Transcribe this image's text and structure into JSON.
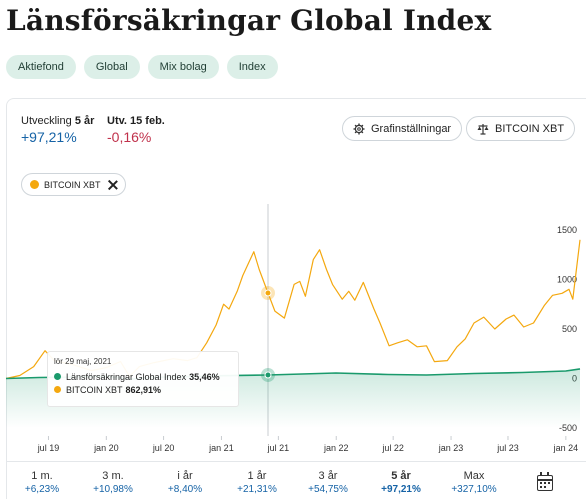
{
  "page": {
    "title": "Länsförsäkringar Global Index",
    "tags": [
      "Aktiefond",
      "Global",
      "Mix bolag",
      "Index"
    ]
  },
  "stats": {
    "development_label": "Utveckling",
    "development_period": "5 år",
    "development_value": "+97,21%",
    "daily_label": "Utv. 15 feb.",
    "daily_value": "-0,16%"
  },
  "buttons": {
    "chart_settings": "Grafinställningar",
    "compare": "BITCOIN XBT"
  },
  "chip": {
    "label": "BITCOIN XBT"
  },
  "tooltip": {
    "date": "lör 29 maj, 2021",
    "rows": [
      {
        "name": "Länsförsäkringar Global Index",
        "value": "35,46%",
        "color": "#1a9a6c"
      },
      {
        "name": "BITCOIN XBT",
        "value": "862,91%",
        "color": "#f4a80f"
      }
    ]
  },
  "colors": {
    "fund": "#1a9a6c",
    "bitcoin": "#f4a80f",
    "positive": "#1663a6",
    "negative": "#c0314b"
  },
  "periods": [
    {
      "label": "1 m.",
      "value": "+6,23%"
    },
    {
      "label": "3 m.",
      "value": "+10,98%"
    },
    {
      "label": "i år",
      "value": "+8,40%"
    },
    {
      "label": "1 år",
      "value": "+21,31%"
    },
    {
      "label": "3 år",
      "value": "+54,75%"
    },
    {
      "label": "5 år",
      "value": "+97,21%",
      "active": true
    },
    {
      "label": "Max",
      "value": "+327,10%"
    }
  ],
  "calendar_icon": "calendar-icon",
  "chart_data": {
    "type": "line",
    "x_ticks": [
      "jul 19",
      "jan 20",
      "jul 20",
      "jan 21",
      "jul 21",
      "jan 22",
      "jul 22",
      "jan 23",
      "jul 23",
      "jan 24"
    ],
    "y_ticks": [
      1500,
      1000,
      500,
      0,
      -500
    ],
    "ylim": [
      -500,
      1600
    ],
    "series": [
      {
        "name": "BITCOIN XBT",
        "color": "#f4a80f",
        "x": [
          "2019-02-16",
          "2019-04-01",
          "2019-05-15",
          "2019-06-20",
          "2019-07-20",
          "2019-09-15",
          "2019-11-15",
          "2020-01-01",
          "2020-02-15",
          "2020-03-15",
          "2020-04-15",
          "2020-06-01",
          "2020-08-01",
          "2020-09-15",
          "2020-10-15",
          "2020-11-15",
          "2020-12-15",
          "2021-01-08",
          "2021-01-25",
          "2021-02-20",
          "2021-03-10",
          "2021-04-14",
          "2021-05-01",
          "2021-05-29",
          "2021-06-20",
          "2021-07-20",
          "2021-08-20",
          "2021-09-07",
          "2021-09-25",
          "2021-10-20",
          "2021-11-09",
          "2021-12-01",
          "2021-12-20",
          "2022-01-20",
          "2022-02-10",
          "2022-03-01",
          "2022-03-28",
          "2022-05-01",
          "2022-05-20",
          "2022-06-18",
          "2022-07-15",
          "2022-08-15",
          "2022-09-15",
          "2022-10-15",
          "2022-11-09",
          "2022-12-20",
          "2023-01-20",
          "2023-02-15",
          "2023-03-15",
          "2023-04-15",
          "2023-05-20",
          "2023-06-25",
          "2023-07-20",
          "2023-08-20",
          "2023-09-20",
          "2023-10-25",
          "2023-11-20",
          "2023-12-20",
          "2024-01-11",
          "2024-01-23",
          "2024-02-15"
        ],
        "values": [
          0,
          30,
          120,
          280,
          180,
          140,
          80,
          110,
          170,
          20,
          120,
          160,
          200,
          180,
          210,
          360,
          540,
          750,
          700,
          880,
          1040,
          1280,
          1100,
          862.91,
          680,
          610,
          950,
          980,
          830,
          1200,
          1300,
          1100,
          950,
          800,
          880,
          790,
          970,
          700,
          560,
          330,
          360,
          390,
          320,
          330,
          170,
          180,
          320,
          400,
          560,
          620,
          500,
          600,
          640,
          520,
          560,
          740,
          840,
          860,
          900,
          800,
          1400
        ]
      },
      {
        "name": "Länsförsäkringar Global Index",
        "color": "#1a9a6c",
        "x": [
          "2019-02-16",
          "2019-06-01",
          "2019-10-01",
          "2020-01-01",
          "2020-03-20",
          "2020-06-01",
          "2020-10-01",
          "2021-01-01",
          "2021-05-29",
          "2021-12-31",
          "2022-06-15",
          "2022-10-15",
          "2023-03-15",
          "2023-08-15",
          "2024-01-01",
          "2024-02-15"
        ],
        "values": [
          0,
          10,
          15,
          22,
          -5,
          12,
          20,
          28,
          35.46,
          55,
          40,
          35,
          50,
          60,
          75,
          97
        ]
      }
    ],
    "highlight_date": "2021-05-29"
  }
}
